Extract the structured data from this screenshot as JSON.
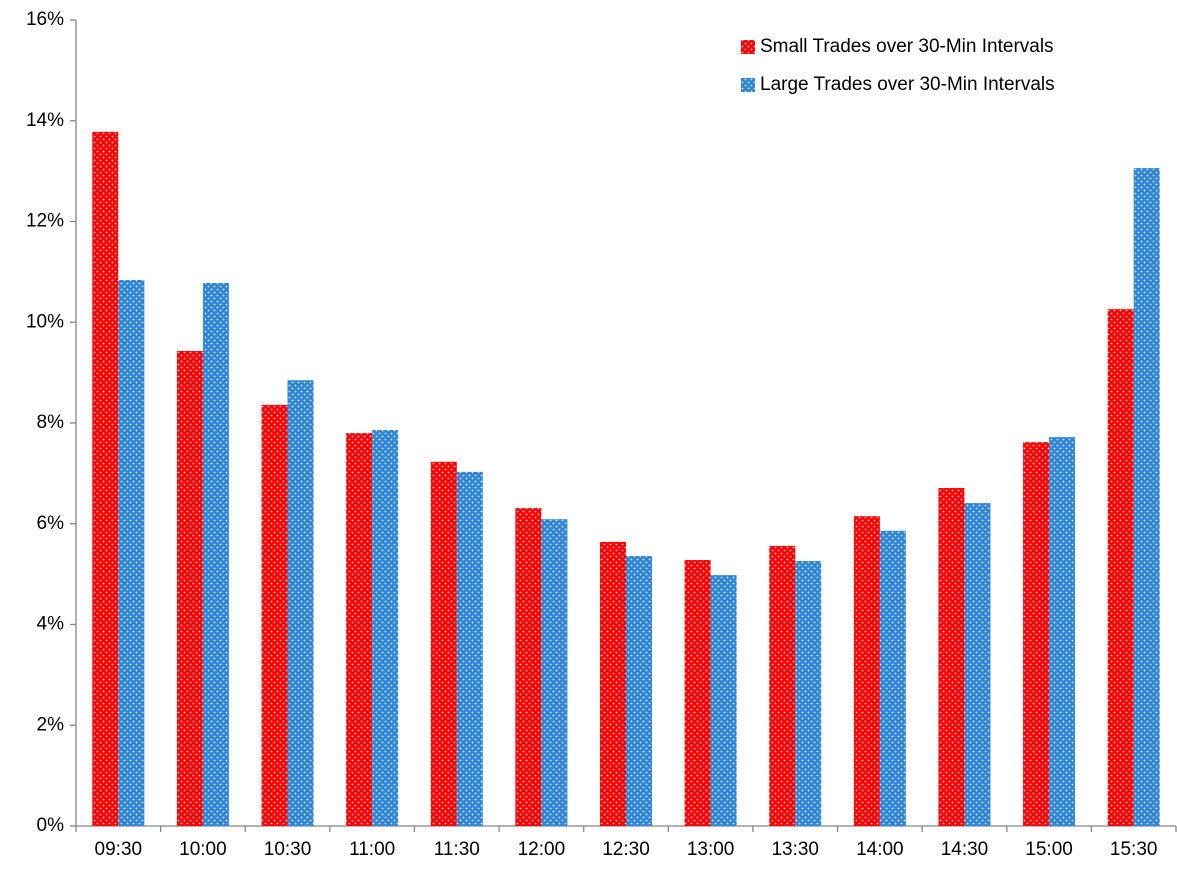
{
  "chart_data": {
    "type": "bar",
    "categories": [
      "09:30",
      "10:00",
      "10:30",
      "11:00",
      "11:30",
      "12:00",
      "12:30",
      "13:00",
      "13:30",
      "14:00",
      "14:30",
      "15:00",
      "15:30"
    ],
    "series": [
      {
        "name": "Small Trades over 30-Min Intervals",
        "color": "#ff0000",
        "values": [
          13.78,
          9.43,
          8.36,
          7.8,
          7.23,
          6.31,
          5.64,
          5.28,
          5.56,
          6.15,
          6.71,
          7.62,
          10.26
        ]
      },
      {
        "name": "Large Trades over 30-Min Intervals",
        "color": "#2f86d6",
        "values": [
          10.84,
          10.78,
          8.85,
          7.86,
          7.03,
          6.09,
          5.36,
          4.98,
          5.26,
          5.86,
          6.41,
          7.72,
          13.06
        ]
      }
    ],
    "ylim": [
      0,
      16
    ],
    "yticks": [
      {
        "value": 0,
        "label": "0%"
      },
      {
        "value": 2,
        "label": "2%"
      },
      {
        "value": 4,
        "label": "4%"
      },
      {
        "value": 6,
        "label": "6%"
      },
      {
        "value": 8,
        "label": "8%"
      },
      {
        "value": 10,
        "label": "10%"
      },
      {
        "value": 12,
        "label": "12%"
      },
      {
        "value": 14,
        "label": "14%"
      },
      {
        "value": 16,
        "label": "16%"
      }
    ],
    "legend": "top-right"
  }
}
